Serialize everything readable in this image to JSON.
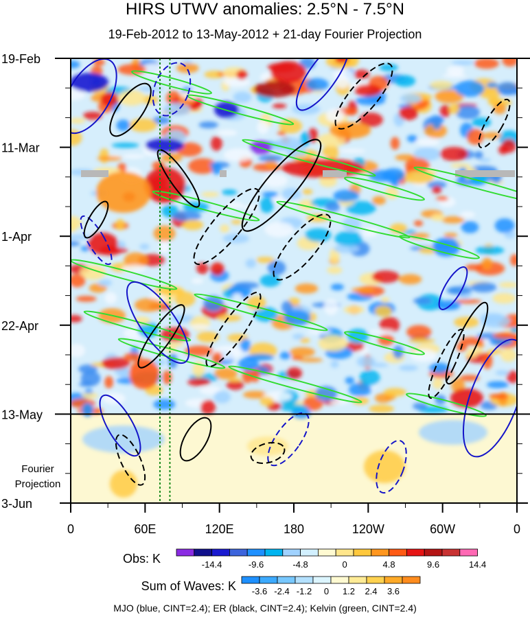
{
  "title": "HIRS UTWV anomalies: 2.5°N - 7.5°N",
  "subtitle": "19-Feb-2012 to 13-May-2012 + 21-day Fourier Projection",
  "footnote": "MJO (blue, CINT=2.4); ER (black, CINT=2.4); Kelvin (green, CINT=2.4)",
  "chart_data": {
    "type": "heatmap",
    "x_ticks": [
      "0",
      "60E",
      "120E",
      "180",
      "120W",
      "60W",
      "0"
    ],
    "y_ticks": [
      "19-Feb",
      "11-Mar",
      "1-Apr",
      "22-Apr",
      "13-May",
      "3-Jun"
    ],
    "y_tick_days": [
      0,
      21,
      42,
      63,
      84,
      105
    ],
    "x_range": [
      0,
      360
    ],
    "y_range_days": [
      0,
      105
    ],
    "observation_end": "13-May",
    "projection_label": [
      "Fourier",
      "Projection"
    ],
    "reference_lines_lon": [
      72,
      80
    ],
    "series": [
      {
        "name": "MJO",
        "color": "#1414c8",
        "cint": 2.4
      },
      {
        "name": "ER",
        "color": "#000000",
        "cint": 2.4
      },
      {
        "name": "Kelvin",
        "color": "#32dc32",
        "cint": 2.4
      }
    ],
    "colorbars": [
      {
        "label": "Obs: K",
        "tick_labels": [
          "-14.4",
          "-9.6",
          "-4.8",
          "0",
          "4.8",
          "9.6",
          "14.4"
        ],
        "colors": [
          "#8a2be2",
          "#10108c",
          "#1a1ad0",
          "#3c64dc",
          "#1e90ff",
          "#00b4f0",
          "#a0d2ff",
          "#d2f0ff",
          "#fffad2",
          "#ffe68c",
          "#ffc83c",
          "#ff961e",
          "#ff5a14",
          "#e61414",
          "#b41414",
          "#c83232",
          "#ff69b4"
        ]
      },
      {
        "label": "Sum of Waves: K",
        "tick_labels": [
          "-3.6",
          "-2.4",
          "-1.2",
          "0",
          "1.2",
          "2.4",
          "3.6"
        ],
        "colors": [
          "#1e90ff",
          "#3caaff",
          "#78c8ff",
          "#b4e1ff",
          "#dcf5ff",
          "#fffad2",
          "#ffeb96",
          "#ffd250",
          "#ffaa28",
          "#ff8c1e"
        ]
      }
    ]
  }
}
